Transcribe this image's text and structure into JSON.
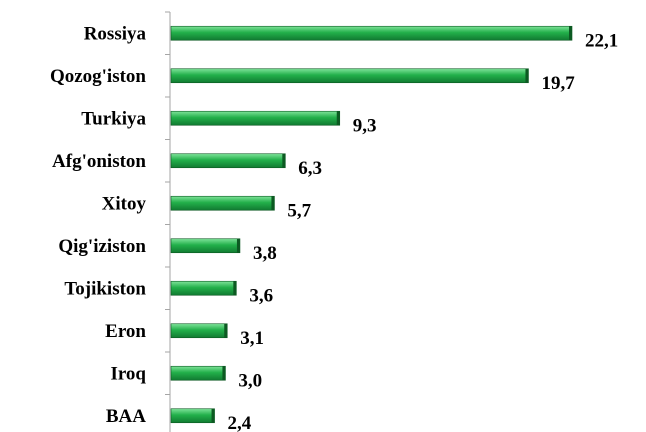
{
  "chart_data": {
    "type": "bar",
    "orientation": "horizontal",
    "categories": [
      "Rossiya",
      "Qozog'iston",
      "Turkiya",
      "Afg'oniston",
      "Xitoy",
      "Qig'iziston",
      "Tojikiston",
      "Eron",
      "Iroq",
      "BAA"
    ],
    "values": [
      22.1,
      19.7,
      9.3,
      6.3,
      5.7,
      3.8,
      3.6,
      3.1,
      3.0,
      2.4
    ],
    "value_labels": [
      "22,1",
      "19,7",
      "9,3",
      "6,3",
      "5,7",
      "3,8",
      "3,6",
      "3,1",
      "3,0",
      "2,4"
    ],
    "xlim": [
      0,
      23
    ],
    "grid": false,
    "legend": "none",
    "colors": {
      "bar": "#22b04a",
      "bar_highlight": "#7fe39a",
      "bar_shadow": "#0c5a22",
      "axis": "#a6a6a6"
    }
  }
}
